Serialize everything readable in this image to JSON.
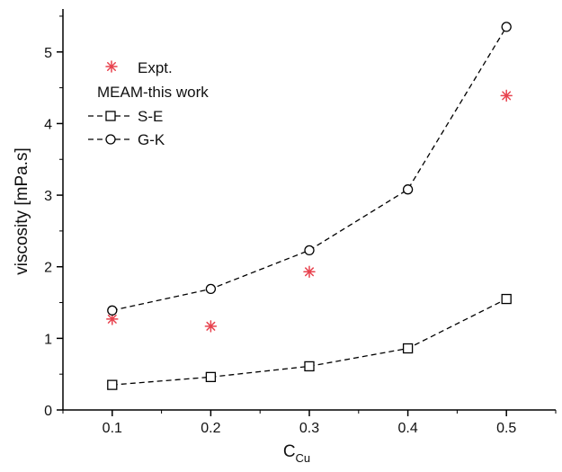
{
  "chart_data": {
    "type": "line",
    "xlabel": "C",
    "xlabel_sub": "Cu",
    "ylabel": "viscosity [mPa.s]",
    "xlim": [
      0.05,
      0.55
    ],
    "ylim": [
      0,
      5.6
    ],
    "xticks": [
      0.1,
      0.2,
      0.3,
      0.4,
      0.5
    ],
    "xtick_labels": [
      "0.1",
      "0.2",
      "0.3",
      "0.4",
      "0.5"
    ],
    "yticks": [
      0,
      1,
      2,
      3,
      4,
      5
    ],
    "ytick_labels": [
      "0",
      "1",
      "2",
      "3",
      "4",
      "5"
    ],
    "grid": false,
    "legend_placement": "top-left",
    "legend_group_label": "MEAM-this work",
    "series": [
      {
        "name": "Expt.",
        "marker": "asterisk",
        "line": "none",
        "color": "#e8434f",
        "x": [
          0.1,
          0.2,
          0.3,
          0.5
        ],
        "y": [
          1.27,
          1.17,
          1.93,
          4.39
        ]
      },
      {
        "name": "S-E",
        "marker": "square",
        "line": "dashed",
        "color": "#000000",
        "x": [
          0.1,
          0.2,
          0.3,
          0.4,
          0.5
        ],
        "y": [
          0.35,
          0.46,
          0.61,
          0.86,
          1.55
        ]
      },
      {
        "name": "G-K",
        "marker": "circle",
        "line": "dashed",
        "color": "#000000",
        "x": [
          0.1,
          0.2,
          0.3,
          0.4,
          0.5
        ],
        "y": [
          1.39,
          1.69,
          2.23,
          3.08,
          5.35
        ]
      }
    ]
  }
}
